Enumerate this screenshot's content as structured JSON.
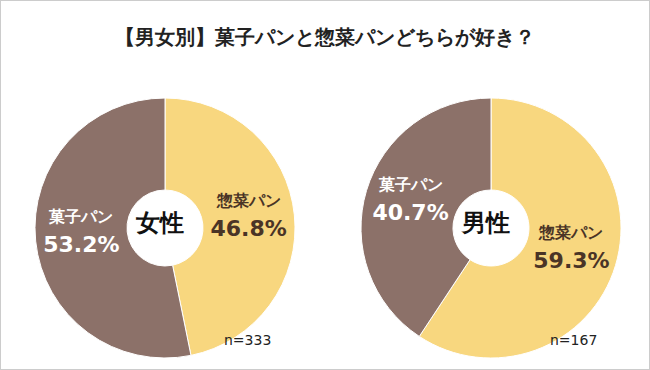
{
  "title": "【男女別】菓子パンと惣菜パンどちらが好き？",
  "chart_data": [
    {
      "type": "pie",
      "center_label": "女性",
      "annotation": "n=333",
      "categories": [
        "惣菜パン",
        "菓子パン"
      ],
      "values": [
        46.8,
        53.2
      ],
      "value_labels": [
        "46.8%",
        "53.2%"
      ],
      "colors": [
        "#f8d77f",
        "#8c7169"
      ],
      "data_labels": true
    },
    {
      "type": "pie",
      "center_label": "男性",
      "annotation": "n=167",
      "categories": [
        "惣菜パン",
        "菓子パン"
      ],
      "values": [
        59.3,
        40.7
      ],
      "value_labels": [
        "59.3%",
        "40.7%"
      ],
      "colors": [
        "#f8d77f",
        "#8c7169"
      ],
      "data_labels": true
    }
  ]
}
